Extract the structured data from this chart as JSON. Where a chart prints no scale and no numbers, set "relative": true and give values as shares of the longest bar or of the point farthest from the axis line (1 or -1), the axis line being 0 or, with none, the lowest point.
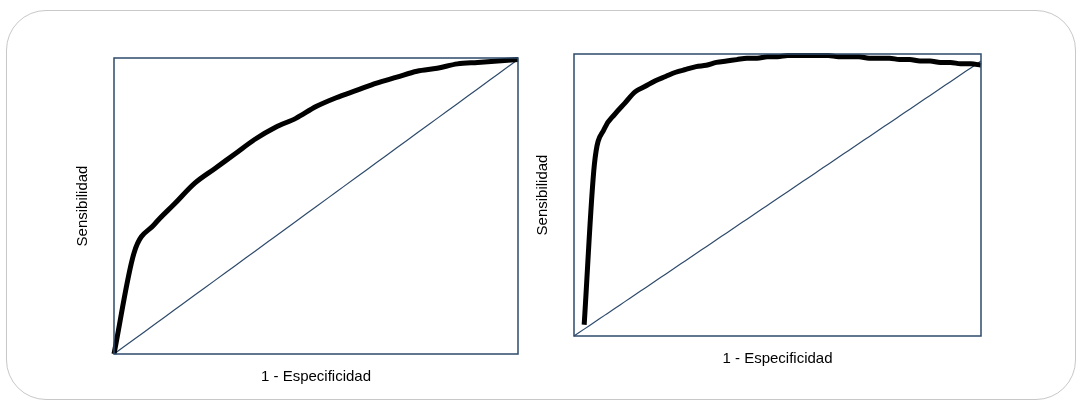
{
  "chart_data": [
    {
      "type": "line",
      "xlabel": "1 - Especificidad",
      "ylabel": "Sensibilidad",
      "relative": true,
      "categories": [
        null,
        null,
        null,
        null,
        null,
        null,
        null,
        null,
        null,
        null,
        null,
        null,
        null,
        null,
        null,
        null,
        null,
        null,
        null,
        null,
        null
      ],
      "series": [
        {
          "color": "#000000",
          "values": [
            0,
            0.345,
            0.44,
            0.51,
            0.58,
            0.63,
            0.68,
            0.73,
            0.77,
            0.8,
            0.84,
            0.87,
            0.895,
            0.92,
            0.94,
            0.96,
            0.97,
            0.985,
            0.99,
            0.995,
            1
          ]
        },
        {
          "color": "#2e4a6b",
          "values": [
            0,
            0.05,
            0.1,
            0.15,
            0.2,
            0.25,
            0.3,
            0.35,
            0.4,
            0.45,
            0.5,
            0.55,
            0.6,
            0.65,
            0.7,
            0.75,
            0.8,
            0.85,
            0.9,
            0.95,
            1
          ]
        }
      ],
      "grid": false,
      "legend": false,
      "tick_labels": false,
      "marker": "none"
    },
    {
      "type": "line",
      "xlabel": "1 - Especificidad",
      "ylabel": "Sensibilidad",
      "relative": true,
      "categories": [
        null,
        null,
        null,
        null,
        null,
        null,
        null,
        null,
        null,
        null,
        null,
        null,
        null,
        null,
        null,
        null,
        null,
        null,
        null,
        null,
        null,
        null,
        null,
        null,
        null,
        null,
        null,
        null,
        null,
        null,
        null,
        null,
        null,
        null,
        null,
        null,
        null,
        null,
        null,
        null,
        null
      ],
      "series": [
        {
          "color": "#000000",
          "values": [
            null,
            0.04,
            0.61,
            0.74,
            0.79,
            0.83,
            0.87,
            0.89,
            0.91,
            0.925,
            0.94,
            0.95,
            0.96,
            0.965,
            0.975,
            0.98,
            0.985,
            0.99,
            0.99,
            0.995,
            0.995,
            1,
            1,
            1,
            1,
            1,
            0.995,
            0.995,
            0.995,
            0.99,
            0.99,
            0.99,
            0.985,
            0.985,
            0.98,
            0.98,
            0.975,
            0.975,
            0.97,
            0.97,
            0.965
          ]
        },
        {
          "color": "#2e4a6b",
          "values": [
            0,
            0.0245,
            0.049,
            0.0735,
            0.098,
            0.1225,
            0.147,
            0.1715,
            0.196,
            0.2205,
            0.245,
            0.2695,
            0.294,
            0.3185,
            0.343,
            0.3675,
            0.392,
            0.4165,
            0.441,
            0.4655,
            0.49,
            0.5145,
            0.539,
            0.5635,
            0.588,
            0.6125,
            0.637,
            0.6615,
            0.686,
            0.7105,
            0.735,
            0.7595,
            0.784,
            0.8085,
            0.833,
            0.8575,
            0.882,
            0.9065,
            0.931,
            0.9555,
            0.98
          ]
        }
      ],
      "grid": false,
      "legend": false,
      "tick_labels": false,
      "marker": "none"
    }
  ]
}
